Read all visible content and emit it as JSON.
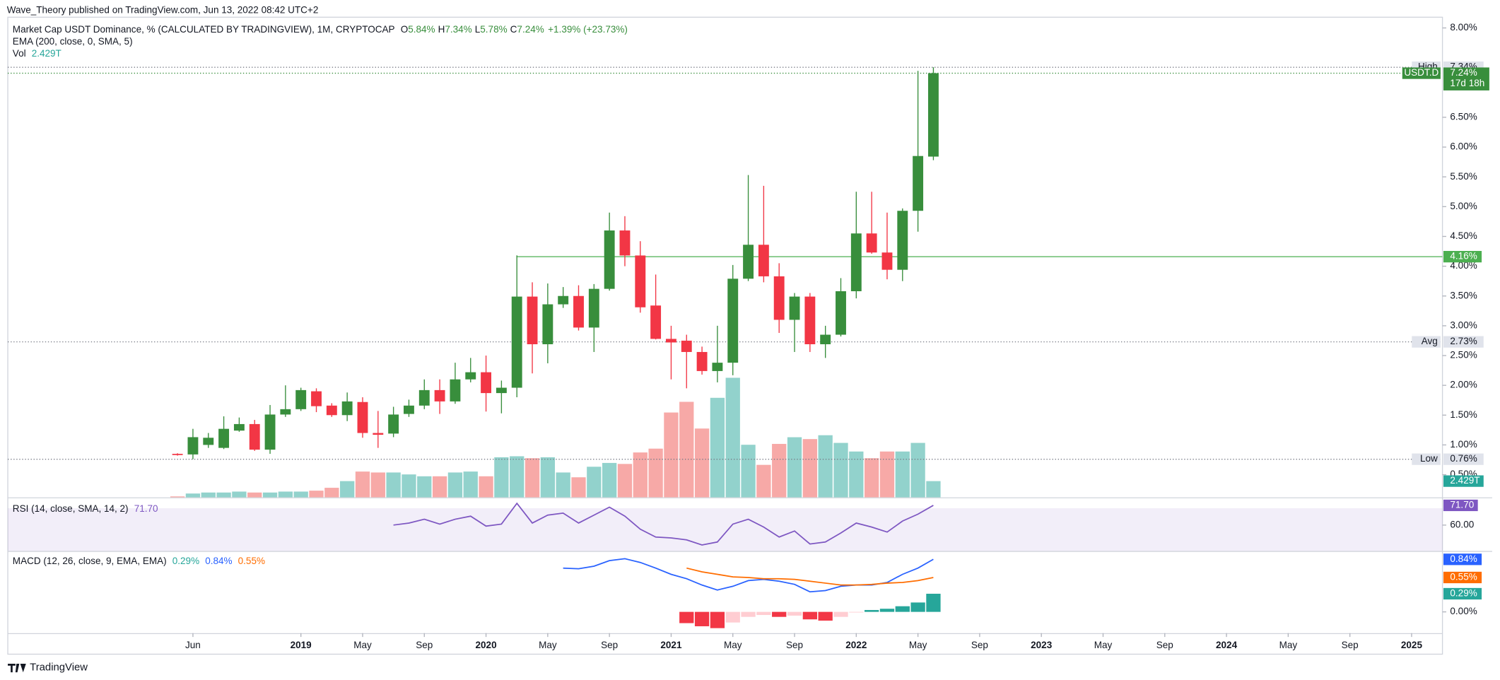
{
  "header": {
    "publisher": "Wave_Theory published on TradingView.com, Jun 13, 2022 08:42 UTC+2"
  },
  "chart_data": {
    "type": "candlestick",
    "title": "Market Cap USDT Dominance, % (CALCULATED BY TRADINGVIEW), 1M, CRYPTOCAP",
    "ohlc_legend": {
      "labels": [
        "O",
        "H",
        "L",
        "C"
      ],
      "values": [
        "5.84%",
        "7.34%",
        "5.78%",
        "7.24%"
      ],
      "change": "+1.39% (+23.73%)"
    },
    "indicator": "EMA (200, close, 0, SMA, 5)",
    "x": [
      "2018-05",
      "2018-06",
      "2018-07",
      "2018-08",
      "2018-09",
      "2018-10",
      "2018-11",
      "2018-12",
      "2019-01",
      "2019-02",
      "2019-03",
      "2019-04",
      "2019-05",
      "2019-06",
      "2019-07",
      "2019-08",
      "2019-09",
      "2019-10",
      "2019-11",
      "2019-12",
      "2020-01",
      "2020-02",
      "2020-03",
      "2020-04",
      "2020-05",
      "2020-06",
      "2020-07",
      "2020-08",
      "2020-09",
      "2020-10",
      "2020-11",
      "2020-12",
      "2021-01",
      "2021-02",
      "2021-03",
      "2021-04",
      "2021-05",
      "2021-06",
      "2021-07",
      "2021-08",
      "2021-09",
      "2021-10",
      "2021-11",
      "2021-12",
      "2022-01",
      "2022-02",
      "2022-03",
      "2022-04",
      "2022-05",
      "2022-06"
    ],
    "open": [
      0.85,
      0.84,
      1.0,
      0.95,
      1.24,
      1.35,
      0.92,
      1.51,
      1.6,
      1.9,
      1.66,
      1.5,
      1.72,
      1.2,
      1.19,
      1.52,
      1.66,
      1.92,
      1.73,
      2.1,
      2.22,
      1.87,
      1.96,
      3.49,
      2.69,
      3.36,
      3.5,
      2.97,
      3.62,
      4.6,
      4.18,
      3.34,
      2.78,
      2.75,
      2.56,
      2.24,
      2.38,
      3.79,
      4.36,
      3.83,
      3.1,
      3.49,
      2.69,
      2.85,
      3.58,
      4.55,
      4.23,
      3.94,
      4.93,
      5.84
    ],
    "high": [
      0.86,
      1.27,
      1.2,
      1.48,
      1.46,
      1.42,
      1.67,
      2.0,
      1.96,
      1.95,
      1.7,
      1.88,
      1.8,
      1.57,
      1.64,
      1.76,
      2.1,
      2.1,
      2.38,
      2.46,
      2.5,
      2.08,
      4.18,
      3.73,
      3.71,
      3.65,
      3.68,
      3.7,
      4.9,
      4.84,
      4.42,
      3.86,
      3.0,
      2.85,
      2.65,
      3.0,
      4.02,
      5.53,
      5.35,
      4.05,
      3.55,
      3.55,
      3.0,
      3.8,
      5.25,
      5.25,
      4.9,
      4.97,
      7.28,
      7.34
    ],
    "low": [
      0.82,
      0.76,
      0.95,
      0.93,
      1.22,
      0.9,
      0.85,
      1.47,
      1.57,
      1.55,
      1.47,
      1.4,
      1.12,
      0.95,
      1.13,
      1.47,
      1.6,
      1.52,
      1.69,
      2.05,
      1.56,
      1.53,
      1.8,
      2.2,
      2.37,
      3.3,
      2.92,
      2.56,
      3.59,
      4.0,
      3.22,
      2.77,
      2.1,
      1.95,
      2.18,
      2.05,
      2.17,
      3.75,
      3.73,
      2.88,
      2.56,
      2.56,
      2.46,
      2.82,
      3.46,
      4.21,
      3.78,
      3.75,
      4.58,
      5.78
    ],
    "close": [
      0.83,
      1.13,
      1.12,
      1.27,
      1.35,
      0.92,
      1.51,
      1.6,
      1.92,
      1.65,
      1.5,
      1.73,
      1.2,
      1.17,
      1.51,
      1.66,
      1.92,
      1.73,
      2.1,
      2.22,
      1.87,
      1.96,
      3.49,
      2.69,
      3.36,
      3.5,
      2.97,
      3.62,
      4.6,
      4.18,
      3.31,
      2.78,
      2.72,
      2.56,
      2.24,
      2.38,
      3.79,
      4.36,
      3.83,
      3.1,
      3.49,
      2.69,
      2.85,
      3.58,
      4.55,
      4.23,
      3.94,
      4.93,
      5.85,
      7.24
    ],
    "colors": {
      "up": "#388e3c",
      "down": "#f23645"
    },
    "ylim": [
      0.12,
      8.18
    ],
    "yticks": [
      {
        "value": 8,
        "label": "8.00%"
      },
      {
        "value": 6.5,
        "label": "6.50%"
      },
      {
        "value": 6,
        "label": "6.00%"
      },
      {
        "value": 5.5,
        "label": "5.50%"
      },
      {
        "value": 5,
        "label": "5.00%"
      },
      {
        "value": 4.5,
        "label": "4.50%"
      },
      {
        "value": 4,
        "label": "4.00%"
      },
      {
        "value": 3.5,
        "label": "3.50%"
      },
      {
        "value": 3,
        "label": "3.00%"
      },
      {
        "value": 2.5,
        "label": "2.50%"
      },
      {
        "value": 2,
        "label": "2.00%"
      },
      {
        "value": 1.5,
        "label": "1.50%"
      },
      {
        "value": 1,
        "label": "1.00%"
      },
      {
        "value": 0.5,
        "label": "0.50%"
      }
    ],
    "xlim": [
      "2017-06",
      "2025-03"
    ],
    "xticks": [
      {
        "value": "2018-06",
        "label": "Jun"
      },
      {
        "value": "2019-01",
        "label": "2019"
      },
      {
        "value": "2019-05",
        "label": "May"
      },
      {
        "value": "2019-09",
        "label": "Sep"
      },
      {
        "value": "2020-01",
        "label": "2020"
      },
      {
        "value": "2020-05",
        "label": "May"
      },
      {
        "value": "2020-09",
        "label": "Sep"
      },
      {
        "value": "2021-01",
        "label": "2021"
      },
      {
        "value": "2021-05",
        "label": "May"
      },
      {
        "value": "2021-09",
        "label": "Sep"
      },
      {
        "value": "2022-01",
        "label": "2022"
      },
      {
        "value": "2022-05",
        "label": "May"
      },
      {
        "value": "2022-09",
        "label": "Sep"
      },
      {
        "value": "2023-01",
        "label": "2023"
      },
      {
        "value": "2023-05",
        "label": "May"
      },
      {
        "value": "2023-09",
        "label": "Sep"
      },
      {
        "value": "2024-01",
        "label": "2024"
      },
      {
        "value": "2024-05",
        "label": "May"
      },
      {
        "value": "2024-09",
        "label": "Sep"
      },
      {
        "value": "2025-01",
        "label": "2025"
      }
    ],
    "levels": [
      {
        "name": "High",
        "value": 7.34,
        "label": "7.34%"
      },
      {
        "name": "Avg",
        "value": 2.73,
        "label": "2.73%"
      },
      {
        "name": "Low",
        "value": 0.76,
        "label": "0.76%"
      }
    ],
    "hline": {
      "value": 4.16,
      "label": "4.16%",
      "start": "2020-03",
      "color": "#4caf50"
    },
    "last": {
      "symbol": "USDT.D",
      "label": "7.24%",
      "countdown": "17d 18h"
    },
    "volume": {
      "name": "Vol",
      "label": "2.429T",
      "colors": {
        "up": "#92d2cc",
        "down": "#f7a9a7"
      },
      "values": [
        0.14,
        0.57,
        0.72,
        0.72,
        0.86,
        0.72,
        0.72,
        0.86,
        0.86,
        1.0,
        1.43,
        2.43,
        3.86,
        3.72,
        3.72,
        3.43,
        3.15,
        3.15,
        3.72,
        3.86,
        3.15,
        6.0,
        6.15,
        5.86,
        6.0,
        3.72,
        3.0,
        4.58,
        5.15,
        5.0,
        6.72,
        7.29,
        12.7,
        14.3,
        10.3,
        14.9,
        17.9,
        7.87,
        4.86,
        8.0,
        9.0,
        8.72,
        9.3,
        8.15,
        6.86,
        5.86,
        6.86,
        6.86,
        8.15,
        2.429
      ]
    },
    "rsi": {
      "name": "RSI (14, close, SMA, 14, 2)",
      "label": "71.70",
      "color": "#7e57c2",
      "start": "2019-07",
      "values": [
        60,
        61.2,
        63.5,
        60.6,
        63.5,
        65.3,
        59.4,
        60.6,
        72.9,
        61.2,
        65.9,
        67.1,
        61.2,
        65.9,
        70.6,
        65.3,
        57.6,
        52.9,
        52.4,
        51.2,
        48.2,
        50,
        60.6,
        63.5,
        58.8,
        52.9,
        56.5,
        48.8,
        50,
        55.3,
        61.2,
        58.8,
        55.9,
        62.4,
        66.5,
        71.7
      ],
      "ylim": [
        44.7,
        75.9
      ],
      "yticks": [
        {
          "value": 60,
          "label": "60.00"
        }
      ],
      "band": [
        30,
        70
      ]
    },
    "macd": {
      "name": "MACD (12, 26, close, 9, EMA, EMA)",
      "ylim": [
        -0.34,
        0.96
      ],
      "yticks": [
        {
          "value": 0,
          "label": "0.00%"
        }
      ],
      "macd": {
        "start": "2020-06",
        "color": "#2962ff",
        "label": "0.84%",
        "values": [
          0.7,
          0.69,
          0.73,
          0.82,
          0.85,
          0.79,
          0.7,
          0.6,
          0.53,
          0.43,
          0.35,
          0.41,
          0.5,
          0.52,
          0.49,
          0.44,
          0.32,
          0.34,
          0.41,
          0.43,
          0.43,
          0.47,
          0.6,
          0.7,
          0.84
        ]
      },
      "signal": {
        "start": "2021-02",
        "color": "#ff6d00",
        "label": "0.55%",
        "values": [
          0.7,
          0.64,
          0.6,
          0.56,
          0.55,
          0.53,
          0.53,
          0.52,
          0.49,
          0.46,
          0.43,
          0.43,
          0.44,
          0.46,
          0.47,
          0.5,
          0.55
        ]
      },
      "histogram": {
        "start": "2021-02",
        "label": "0.29%",
        "values": [
          -0.18,
          -0.23,
          -0.26,
          -0.17,
          -0.08,
          -0.05,
          -0.08,
          -0.06,
          -0.12,
          -0.14,
          -0.08,
          -0.01,
          0.03,
          0.05,
          0.09,
          0.15,
          0.29
        ],
        "colors": [
          "#f23645",
          "#f23645",
          "#f23645",
          "#ffcdd2",
          "#ffcdd2",
          "#ffcdd2",
          "#f23645",
          "#ffcdd2",
          "#f23645",
          "#f23645",
          "#ffcdd2",
          "#ffcdd2",
          "#26a69a",
          "#26a69a",
          "#26a69a",
          "#26a69a",
          "#26a69a"
        ]
      }
    }
  },
  "footer": {
    "brand": "TradingView"
  }
}
